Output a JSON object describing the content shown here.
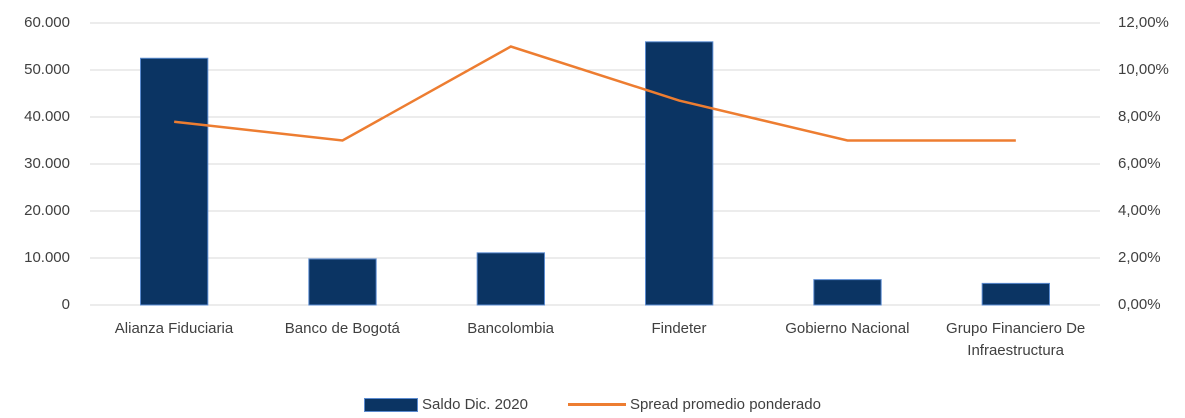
{
  "chart_data": {
    "type": "bar-line",
    "categories": [
      "Alianza Fiduciaria",
      "Banco de Bogotá",
      "Bancolombia",
      "Findeter",
      "Gobierno Nacional",
      "Grupo Financiero De Infraestructura"
    ],
    "series": [
      {
        "name": "Saldo Dic. 2020",
        "type": "bar",
        "color": "#0b3463",
        "values": [
          52500,
          9800,
          11100,
          56000,
          5400,
          4600
        ]
      },
      {
        "name": "Spread promedio ponderado",
        "type": "line",
        "axis": "y2",
        "color": "#ed7d31",
        "values": [
          7.8,
          7.0,
          11.0,
          8.7,
          7.0,
          7.0
        ]
      }
    ],
    "ylim": [
      0,
      60000
    ],
    "yticks": [
      0,
      {
        "value": 10000,
        "label": "10.000"
      },
      {
        "value": 20000,
        "label": "20.000"
      },
      {
        "value": 30000,
        "label": "30.000"
      },
      {
        "value": 40000,
        "label": "40.000"
      },
      {
        "value": 50000,
        "label": "50.000"
      },
      {
        "value": 60000,
        "label": "60.000"
      }
    ],
    "y2lim": [
      0,
      12
    ],
    "y2ticks": [
      {
        "value": 0,
        "label": "0,00%"
      },
      {
        "value": 2,
        "label": "2,00%"
      },
      {
        "value": 4,
        "label": "4,00%"
      },
      {
        "value": 6,
        "label": "6,00%"
      },
      {
        "value": 8,
        "label": "8,00%"
      },
      {
        "value": 10,
        "label": "10,00%"
      },
      {
        "value": 12,
        "label": "12,00%"
      }
    ],
    "grid": true,
    "legend": "bottom"
  }
}
